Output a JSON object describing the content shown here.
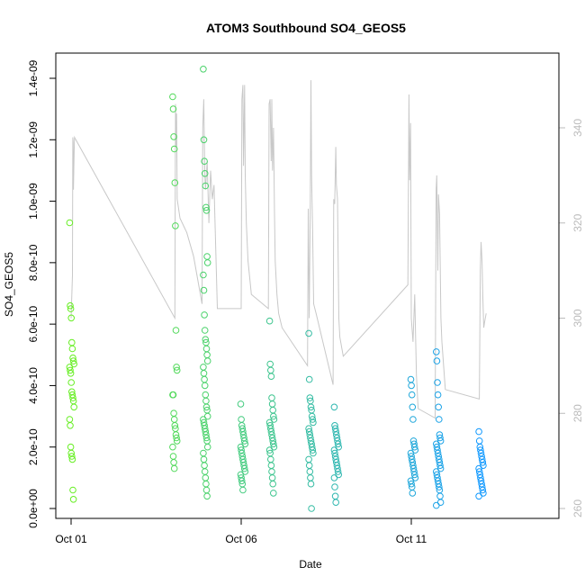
{
  "chart_data": {
    "type": "scatter",
    "title": "ATOM3 Southbound SO4_GEOS5",
    "xlabel": "Date",
    "ylabel": "SO4_GEOS5",
    "xlim": [
      0.0,
      14.0
    ],
    "ylim": [
      0.0,
      1.45e-09
    ],
    "y2lim": [
      260,
      353
    ],
    "x_ticks": [
      {
        "value": 0,
        "label": "Oct 01"
      },
      {
        "value": 5,
        "label": "Oct 06"
      },
      {
        "value": 10,
        "label": "Oct 11"
      }
    ],
    "y_ticks": [
      {
        "value": 0,
        "label": "0.0e+00"
      },
      {
        "value": 2e-10,
        "label": "2.0e-10"
      },
      {
        "value": 4e-10,
        "label": "4.0e-10"
      },
      {
        "value": 6e-10,
        "label": "6.0e-10"
      },
      {
        "value": 8e-10,
        "label": "8.0e-10"
      },
      {
        "value": 1e-09,
        "label": "1.0e-09"
      },
      {
        "value": 1.2e-09,
        "label": "1.2e-09"
      },
      {
        "value": 1.4e-09,
        "label": "1.4e-09"
      }
    ],
    "y2_ticks": [
      {
        "value": 260,
        "label": "260"
      },
      {
        "value": 280,
        "label": "280"
      },
      {
        "value": 300,
        "label": "300"
      },
      {
        "value": 320,
        "label": "320"
      },
      {
        "value": 340,
        "label": "340"
      }
    ],
    "grid": false,
    "legend": "none",
    "colors": {
      "points_start": "#66ee22",
      "points_end": "#1199ff",
      "line": "#c8c8c8",
      "right_axis": "#bbbbbb",
      "frame": "#000000"
    },
    "series": [
      {
        "marker": "open-circle",
        "flights": [
          {
            "x": 0.02,
            "values": [
              9.3e-10,
              6.6e-10,
              6.5e-10,
              6.2e-10,
              5.4e-10,
              5.2e-10,
              4.9e-10,
              4.8e-10,
              4.7e-10,
              4.6e-10,
              4.5e-10,
              4.4e-10,
              4.1e-10,
              3.8e-10,
              3.7e-10,
              3.6e-10,
              3.5e-10,
              3.3e-10,
              2.9e-10,
              2.7e-10,
              2e-10,
              1.8e-10,
              1.7e-10,
              1.6e-10,
              6e-11,
              3e-11
            ]
          },
          {
            "x": 3.05,
            "values": [
              1.34e-09,
              1.3e-09,
              1.21e-09,
              1.17e-09,
              1.06e-09,
              9.2e-10,
              5.8e-10,
              4.6e-10,
              4.5e-10,
              3.7e-10,
              3.7e-10,
              3.1e-10,
              2.9e-10,
              2.7e-10,
              2.6e-10,
              2.4e-10,
              2.3e-10,
              2.2e-10,
              2e-10,
              1.7e-10,
              1.5e-10,
              1.3e-10
            ]
          },
          {
            "x": 3.95,
            "values": [
              1.43e-09,
              1.2e-09,
              1.13e-09,
              1.09e-09,
              1.05e-09,
              9.8e-10,
              9.7e-10,
              8.2e-10,
              8e-10,
              7.6e-10,
              7.1e-10,
              6.3e-10,
              5.8e-10,
              5.5e-10,
              5.4e-10,
              5.2e-10,
              5e-10,
              4.8e-10,
              4.6e-10,
              4.4e-10,
              4.2e-10,
              4e-10,
              3.7e-10,
              3.5e-10,
              3.3e-10,
              3.2e-10,
              3e-10,
              2.9e-10,
              2.8e-10,
              2.7e-10,
              2.6e-10,
              2.5e-10,
              2.4e-10,
              2.3e-10,
              2.2e-10,
              2e-10,
              1.8e-10,
              1.6e-10,
              1.4e-10,
              1.2e-10,
              1e-10,
              8e-11,
              6e-11,
              4e-11
            ]
          },
          {
            "x": 5.05,
            "values": [
              3.4e-10,
              2.9e-10,
              2.7e-10,
              2.6e-10,
              2.5e-10,
              2.4e-10,
              2.3e-10,
              2.2e-10,
              2.1e-10,
              2e-10,
              1.9e-10,
              1.8e-10,
              1.7e-10,
              1.6e-10,
              1.5e-10,
              1.4e-10,
              1.3e-10,
              1.2e-10,
              1.1e-10,
              1e-10,
              9e-11,
              8e-11,
              6e-11
            ]
          },
          {
            "x": 5.9,
            "values": [
              6.1e-10,
              4.7e-10,
              4.5e-10,
              4.3e-10,
              3.6e-10,
              3.4e-10,
              3.2e-10,
              3e-10,
              2.9e-10,
              2.8e-10,
              2.7e-10,
              2.6e-10,
              2.5e-10,
              2.4e-10,
              2.3e-10,
              2.2e-10,
              2.1e-10,
              2e-10,
              1.9e-10,
              1.8e-10,
              1.6e-10,
              1.4e-10,
              1.2e-10,
              1e-10,
              8e-11,
              5e-11
            ]
          },
          {
            "x": 7.05,
            "values": [
              5.7e-10,
              4.2e-10,
              3.6e-10,
              3.5e-10,
              3.3e-10,
              3.2e-10,
              3e-10,
              2.9e-10,
              2.8e-10,
              2.6e-10,
              2.5e-10,
              2.4e-10,
              2.3e-10,
              2.2e-10,
              2.1e-10,
              2e-10,
              1.9e-10,
              1.8e-10,
              1.6e-10,
              1.4e-10,
              1.2e-10,
              1e-10,
              8e-11,
              0.0
            ]
          },
          {
            "x": 7.8,
            "values": [
              3.3e-10,
              2.7e-10,
              2.6e-10,
              2.5e-10,
              2.4e-10,
              2.3e-10,
              2.2e-10,
              2.1e-10,
              2e-10,
              1.9e-10,
              1.8e-10,
              1.7e-10,
              1.6e-10,
              1.5e-10,
              1.4e-10,
              1.3e-10,
              1.2e-10,
              1.1e-10,
              1e-10,
              7e-11,
              4e-11,
              2e-11
            ]
          },
          {
            "x": 10.05,
            "values": [
              4.2e-10,
              4e-10,
              3.7e-10,
              3.3e-10,
              2.9e-10,
              2.2e-10,
              2.1e-10,
              2e-10,
              1.9e-10,
              1.8e-10,
              1.7e-10,
              1.6e-10,
              1.5e-10,
              1.4e-10,
              1.3e-10,
              1.2e-10,
              1.1e-10,
              1e-10,
              9e-11,
              8e-11,
              7e-11,
              5e-11
            ]
          },
          {
            "x": 10.8,
            "values": [
              5.1e-10,
              4.8e-10,
              4.1e-10,
              3.7e-10,
              3.3e-10,
              2.9e-10,
              2.4e-10,
              2.3e-10,
              2.2e-10,
              2.1e-10,
              2e-10,
              1.9e-10,
              1.8e-10,
              1.7e-10,
              1.6e-10,
              1.5e-10,
              1.4e-10,
              1.3e-10,
              1.2e-10,
              1.1e-10,
              1e-10,
              9e-11,
              8e-11,
              7e-11,
              6e-11,
              4e-11,
              2e-11,
              1e-11
            ]
          },
          {
            "x": 12.05,
            "values": [
              2.5e-10,
              2.2e-10,
              2e-10,
              1.9e-10,
              1.8e-10,
              1.7e-10,
              1.6e-10,
              1.5e-10,
              1.4e-10,
              1.3e-10,
              1.2e-10,
              1.1e-10,
              1e-10,
              9e-11,
              8e-11,
              7e-11,
              6e-11,
              5e-11,
              4e-11
            ]
          }
        ]
      },
      {
        "axis": "right",
        "style": "line",
        "x": [
          0.0,
          0.04,
          0.05,
          0.06,
          0.07,
          0.08,
          0.09,
          0.1,
          3.05,
          3.07,
          3.08,
          3.09,
          3.1,
          3.12,
          3.2,
          3.4,
          3.6,
          3.85,
          3.87,
          3.9,
          3.93,
          3.95,
          4.0,
          4.05,
          4.1,
          4.15,
          4.2,
          4.3,
          5.0,
          5.02,
          5.05,
          5.07,
          5.1,
          5.12,
          5.15,
          5.2,
          5.3,
          5.8,
          5.82,
          5.85,
          5.88,
          5.9,
          5.92,
          5.95,
          5.98,
          6.0,
          6.05,
          6.1,
          6.2,
          6.95,
          6.97,
          7.0,
          7.03,
          7.05,
          7.07,
          7.1,
          7.13,
          7.2,
          7.7,
          7.72,
          7.75,
          7.78,
          7.8,
          7.83,
          7.87,
          7.9,
          8.0,
          9.9,
          9.93,
          9.95,
          9.98,
          10.0,
          10.05,
          10.1,
          10.15,
          10.2,
          10.7,
          10.73,
          10.75,
          10.78,
          10.8,
          10.83,
          10.87,
          10.9,
          11.0,
          12.0,
          12.03,
          12.05,
          12.08,
          12.1,
          12.13,
          12.15,
          12.2
        ],
        "values": [
          300,
          309,
          338,
          337,
          327,
          331,
          335,
          338,
          300,
          345,
          340,
          336,
          343,
          325,
          321,
          318,
          313,
          303,
          340,
          346,
          330,
          327,
          333,
          320,
          331,
          325,
          328,
          302,
          302,
          346,
          349,
          332,
          349,
          330,
          320,
          312,
          305,
          302,
          345,
          346,
          333,
          346,
          331,
          340,
          322,
          312,
          305,
          301,
          298,
          290,
          323,
          300,
          322,
          350,
          330,
          318,
          303,
          301,
          286,
          325,
          324,
          336,
          328,
          325,
          300,
          296,
          292,
          307,
          347,
          329,
          341,
          300,
          295,
          305,
          288,
          281,
          279,
          327,
          330,
          310,
          326,
          322,
          300,
          295,
          285,
          283,
          310,
          316,
          312,
          305,
          298,
          299,
          301
        ]
      }
    ]
  }
}
